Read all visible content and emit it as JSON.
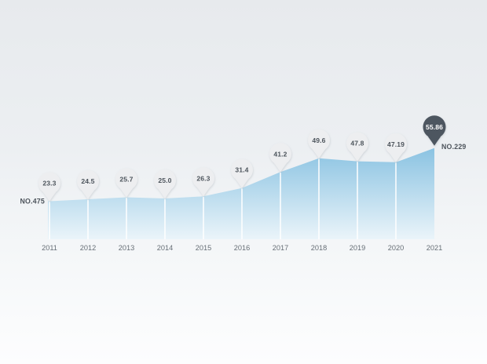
{
  "chart_data": {
    "type": "area",
    "title": "",
    "xlabel": "",
    "ylabel": "",
    "categories": [
      "2011",
      "2012",
      "2013",
      "2014",
      "2015",
      "2016",
      "2017",
      "2018",
      "2019",
      "2020",
      "2021"
    ],
    "values": [
      23.3,
      24.5,
      25.7,
      25.0,
      26.3,
      31.4,
      41.2,
      49.6,
      47.8,
      47.19,
      55.86
    ],
    "value_labels": [
      "23.3",
      "24.5",
      "25.7",
      "25.0",
      "26.3",
      "31.4",
      "41.2",
      "49.6",
      "47.8",
      "47.19",
      "55.86"
    ],
    "ylim": [
      0,
      58
    ],
    "grid": "vertical-white-separators",
    "legend": "none",
    "start_annotation": "NO.475",
    "end_annotation": "NO.229",
    "highlight_index": 10
  },
  "colors": {
    "area_top": "#87c1e1",
    "area_bottom": "#ecf5fa",
    "separator": "#ffffff",
    "pin_fill": "#edeef0",
    "pin_text": "#4d545c",
    "pin_highlight_fill": "#4d5661",
    "pin_highlight_text": "#ffffff",
    "year_text": "#666e76",
    "annotation_text": "#4d545c",
    "pin_shadow": "#8d979e"
  }
}
